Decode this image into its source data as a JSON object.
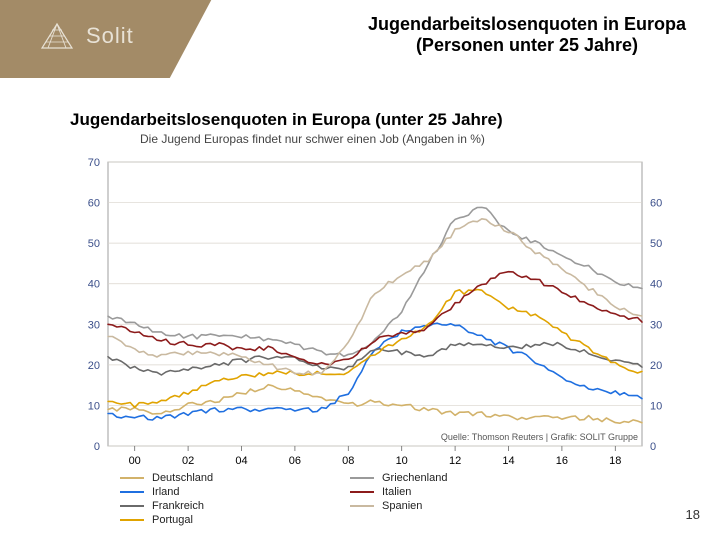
{
  "brand": {
    "name": "Solit"
  },
  "header": {
    "line1": "Jugendarbeitslosenquoten in Europa",
    "line2": "(Personen unter 25 Jahre)"
  },
  "chart": {
    "type": "line",
    "title": "Jugendarbeitslosenquoten in Europa (unter 25 Jahre)",
    "subtitle": "Die Jugend Europas findet nur schwer einen Job (Angaben in %)",
    "source": "Quelle: Thomson Reuters | Grafik: SOLIT Gruppe",
    "ylabel_left": "",
    "ylabel_right": "",
    "xlim": [
      1999,
      2019
    ],
    "ylim": [
      0,
      70
    ],
    "ytick_step": 10,
    "xticks": [
      "00",
      "02",
      "04",
      "06",
      "08",
      "10",
      "12",
      "14",
      "16",
      "18"
    ],
    "xtick_years": [
      2000,
      2002,
      2004,
      2006,
      2008,
      2010,
      2012,
      2014,
      2016,
      2018
    ],
    "background_color": "#ffffff",
    "grid_color": "#d9d4cc",
    "axis_label_color": "#3b4f8a",
    "tick_color": "#000000",
    "yticks_left": [
      0,
      10,
      20,
      30,
      40,
      50,
      60,
      70
    ],
    "yticks_right": [
      0,
      10,
      20,
      30,
      40,
      50,
      60
    ],
    "line_width": 1.6,
    "series": [
      {
        "name": "Deutschland",
        "color": "#d2b26a",
        "x": [
          1999,
          2000,
          2001,
          2002,
          2003,
          2004,
          2005,
          2006,
          2007,
          2008,
          2009,
          2010,
          2011,
          2012,
          2013,
          2014,
          2015,
          2016,
          2017,
          2018,
          2019
        ],
        "y": [
          9,
          9,
          8,
          10,
          11,
          13,
          15,
          14,
          12,
          10,
          11,
          10,
          9,
          8,
          8,
          7,
          7,
          7,
          7,
          6,
          6
        ]
      },
      {
        "name": "Irland",
        "color": "#1f6fe0",
        "x": [
          1999,
          2000,
          2001,
          2002,
          2003,
          2004,
          2005,
          2006,
          2007,
          2008,
          2009,
          2010,
          2011,
          2012,
          2013,
          2014,
          2015,
          2016,
          2017,
          2018,
          2019
        ],
        "y": [
          8,
          7,
          7,
          8,
          9,
          9,
          9,
          9,
          9,
          13,
          24,
          28,
          30,
          30,
          27,
          24,
          21,
          17,
          14,
          13,
          12
        ]
      },
      {
        "name": "Frankreich",
        "color": "#6a6a6a",
        "x": [
          1999,
          2000,
          2001,
          2002,
          2003,
          2004,
          2005,
          2006,
          2007,
          2008,
          2009,
          2010,
          2011,
          2012,
          2013,
          2014,
          2015,
          2016,
          2017,
          2018,
          2019
        ],
        "y": [
          22,
          19,
          18,
          19,
          20,
          21,
          22,
          22,
          19,
          19,
          24,
          23,
          22,
          25,
          25,
          24,
          25,
          25,
          23,
          21,
          20
        ]
      },
      {
        "name": "Portugal",
        "color": "#e0a300",
        "x": [
          1999,
          2000,
          2001,
          2002,
          2003,
          2004,
          2005,
          2006,
          2007,
          2008,
          2009,
          2010,
          2011,
          2012,
          2013,
          2014,
          2015,
          2016,
          2017,
          2018,
          2019
        ],
        "y": [
          11,
          10,
          11,
          13,
          16,
          17,
          18,
          18,
          18,
          18,
          23,
          26,
          30,
          38,
          38,
          34,
          32,
          28,
          24,
          20,
          18
        ]
      },
      {
        "name": "Griechenland",
        "color": "#9a9a9a",
        "x": [
          1999,
          2000,
          2001,
          2002,
          2003,
          2004,
          2005,
          2006,
          2007,
          2008,
          2009,
          2010,
          2011,
          2012,
          2013,
          2014,
          2015,
          2016,
          2017,
          2018,
          2019
        ],
        "y": [
          32,
          30,
          28,
          27,
          27,
          27,
          26,
          25,
          23,
          22,
          26,
          33,
          45,
          56,
          59,
          53,
          50,
          47,
          44,
          40,
          39
        ]
      },
      {
        "name": "Italien",
        "color": "#8c1b1b",
        "x": [
          1999,
          2000,
          2001,
          2002,
          2003,
          2004,
          2005,
          2006,
          2007,
          2008,
          2009,
          2010,
          2011,
          2012,
          2013,
          2014,
          2015,
          2016,
          2017,
          2018,
          2019
        ],
        "y": [
          30,
          28,
          26,
          25,
          25,
          24,
          24,
          22,
          20,
          21,
          26,
          28,
          29,
          35,
          40,
          43,
          41,
          38,
          35,
          32,
          31
        ]
      },
      {
        "name": "Spanien",
        "color": "#c9b9a0",
        "x": [
          1999,
          2000,
          2001,
          2002,
          2003,
          2004,
          2005,
          2006,
          2007,
          2008,
          2009,
          2010,
          2011,
          2012,
          2013,
          2014,
          2015,
          2016,
          2017,
          2018,
          2019
        ],
        "y": [
          27,
          24,
          22,
          23,
          23,
          22,
          20,
          18,
          18,
          25,
          38,
          42,
          46,
          53,
          56,
          53,
          48,
          44,
          39,
          34,
          32
        ]
      }
    ]
  },
  "page_number": "18"
}
